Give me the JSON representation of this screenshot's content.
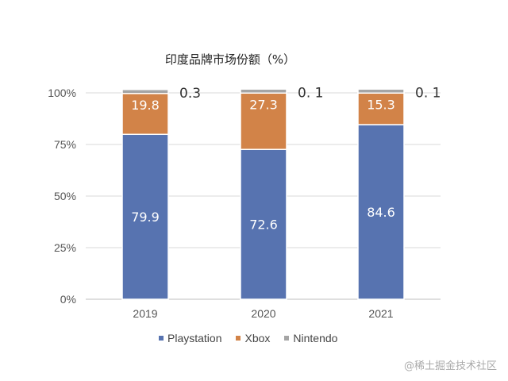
{
  "chart_data": {
    "type": "bar",
    "stacked": true,
    "title": "印度品牌市场份额（%）",
    "categories": [
      "2019",
      "2020",
      "2021"
    ],
    "series": [
      {
        "name": "Playstation",
        "values": [
          79.9,
          72.6,
          84.6
        ],
        "color": "#5773b0",
        "labels": [
          "79.9",
          "72.6",
          "84.6"
        ]
      },
      {
        "name": "Xbox",
        "values": [
          19.8,
          27.3,
          15.3
        ],
        "color": "#d28348",
        "labels": [
          "19.8",
          "27.3",
          "15.3"
        ]
      },
      {
        "name": "Nintendo",
        "values": [
          0.3,
          0.1,
          0.1
        ],
        "color": "#a5a5a5",
        "labels": [
          "0.3",
          "0. 1",
          "0. 1"
        ]
      }
    ],
    "yticks": [
      "0%",
      "25%",
      "50%",
      "75%",
      "100%"
    ],
    "ylim": [
      0,
      100
    ],
    "grid": true,
    "legend_position": "bottom"
  },
  "watermark": "@稀土掘金技术社区"
}
